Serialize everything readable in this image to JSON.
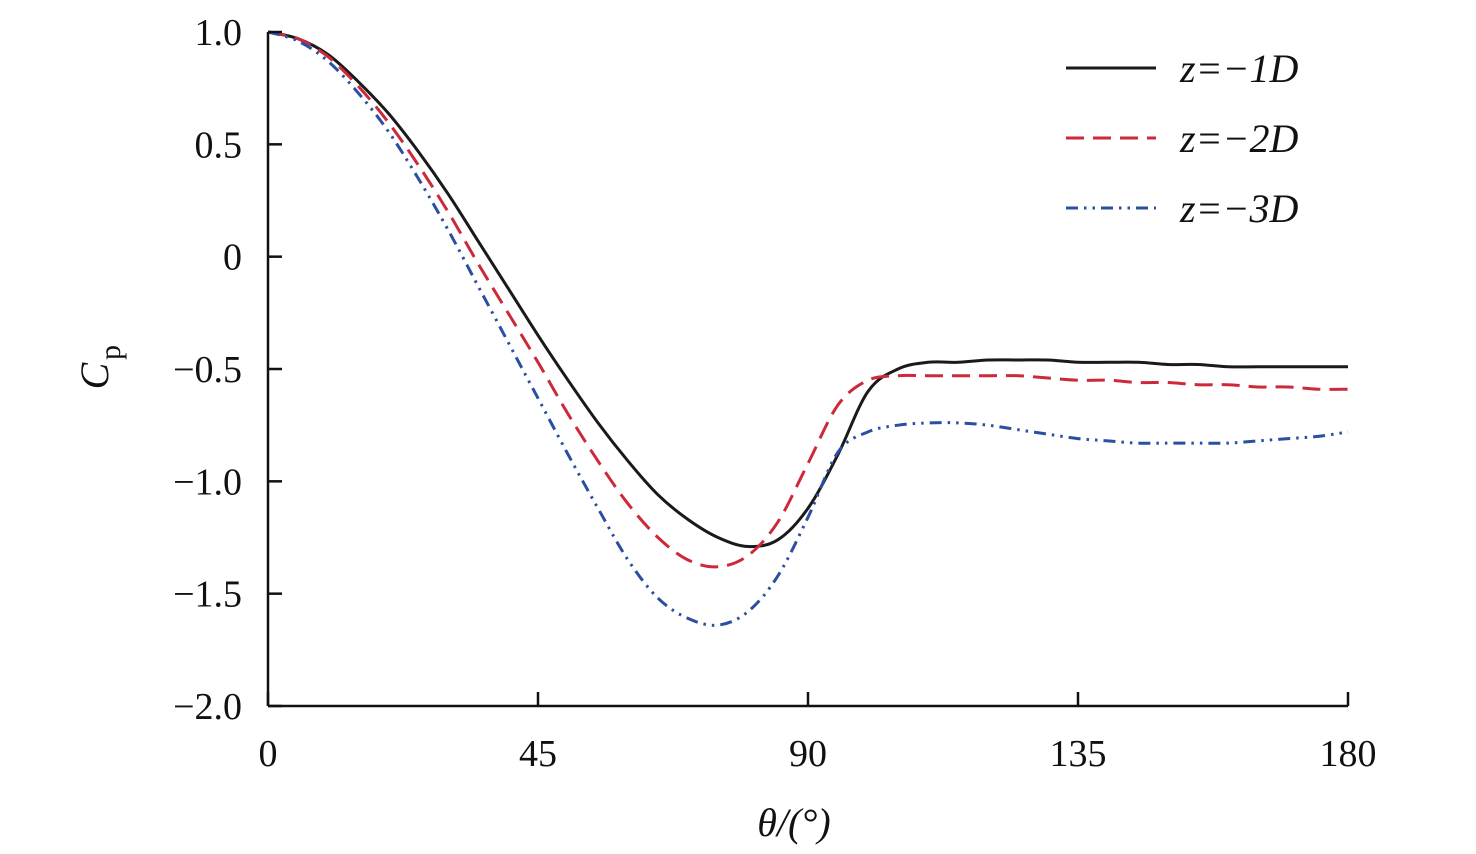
{
  "chart_data": {
    "type": "line",
    "xlabel": "θ/(°)",
    "ylabel": "C",
    "ylabel_sub": "p",
    "xlim": [
      0,
      180
    ],
    "ylim": [
      -2.0,
      1.0
    ],
    "xticks": [
      0,
      45,
      90,
      135,
      180
    ],
    "xtick_labels": [
      "0",
      "45",
      "90",
      "135",
      "180"
    ],
    "yticks": [
      1.0,
      0.5,
      0,
      -0.5,
      -1.0,
      -1.5,
      -2.0
    ],
    "ytick_labels": [
      "1.0",
      "0.5",
      "0",
      "−0.5",
      "−1.0",
      "−1.5",
      "−2.0"
    ],
    "grid": false,
    "legend_position": "top-right",
    "series": [
      {
        "name": "z=−1D",
        "color": "#1a1a1a",
        "dash": "solid",
        "x": [
          0,
          5,
          10,
          15,
          20,
          25,
          30,
          35,
          40,
          45,
          50,
          55,
          60,
          65,
          70,
          75,
          80,
          85,
          90,
          95,
          100,
          105,
          110,
          115,
          120,
          125,
          130,
          135,
          140,
          145,
          150,
          155,
          160,
          165,
          170,
          175,
          180
        ],
        "y": [
          1.0,
          0.97,
          0.9,
          0.78,
          0.64,
          0.47,
          0.28,
          0.07,
          -0.14,
          -0.35,
          -0.55,
          -0.74,
          -0.91,
          -1.06,
          -1.17,
          -1.25,
          -1.29,
          -1.26,
          -1.12,
          -0.88,
          -0.6,
          -0.5,
          -0.47,
          -0.47,
          -0.46,
          -0.46,
          -0.46,
          -0.47,
          -0.47,
          -0.47,
          -0.48,
          -0.48,
          -0.49,
          -0.49,
          -0.49,
          -0.49,
          -0.49
        ]
      },
      {
        "name": "z=−2D",
        "color": "#cc2a3a",
        "dash": "dashed",
        "x": [
          0,
          5,
          10,
          15,
          20,
          25,
          30,
          35,
          40,
          45,
          50,
          55,
          60,
          65,
          70,
          75,
          80,
          85,
          90,
          95,
          100,
          105,
          110,
          115,
          120,
          125,
          130,
          135,
          140,
          145,
          150,
          155,
          160,
          165,
          170,
          175,
          180
        ],
        "y": [
          1.0,
          0.97,
          0.89,
          0.76,
          0.6,
          0.41,
          0.2,
          -0.03,
          -0.25,
          -0.47,
          -0.7,
          -0.91,
          -1.1,
          -1.25,
          -1.35,
          -1.38,
          -1.33,
          -1.18,
          -0.92,
          -0.66,
          -0.55,
          -0.53,
          -0.53,
          -0.53,
          -0.53,
          -0.53,
          -0.54,
          -0.55,
          -0.55,
          -0.56,
          -0.56,
          -0.57,
          -0.57,
          -0.58,
          -0.58,
          -0.59,
          -0.59
        ]
      },
      {
        "name": "z=−3D",
        "color": "#2b4fa0",
        "dash": "dash-dot-dot",
        "x": [
          0,
          5,
          10,
          15,
          20,
          25,
          30,
          35,
          40,
          45,
          50,
          55,
          60,
          65,
          70,
          75,
          80,
          85,
          90,
          95,
          100,
          105,
          110,
          115,
          120,
          125,
          130,
          135,
          140,
          145,
          150,
          155,
          160,
          165,
          170,
          175,
          180
        ],
        "y": [
          1.0,
          0.96,
          0.87,
          0.73,
          0.56,
          0.35,
          0.12,
          -0.13,
          -0.38,
          -0.63,
          -0.88,
          -1.12,
          -1.35,
          -1.52,
          -1.61,
          -1.64,
          -1.58,
          -1.42,
          -1.16,
          -0.87,
          -0.78,
          -0.75,
          -0.74,
          -0.74,
          -0.75,
          -0.77,
          -0.79,
          -0.81,
          -0.82,
          -0.83,
          -0.83,
          -0.83,
          -0.83,
          -0.82,
          -0.81,
          -0.8,
          -0.78
        ]
      }
    ]
  }
}
